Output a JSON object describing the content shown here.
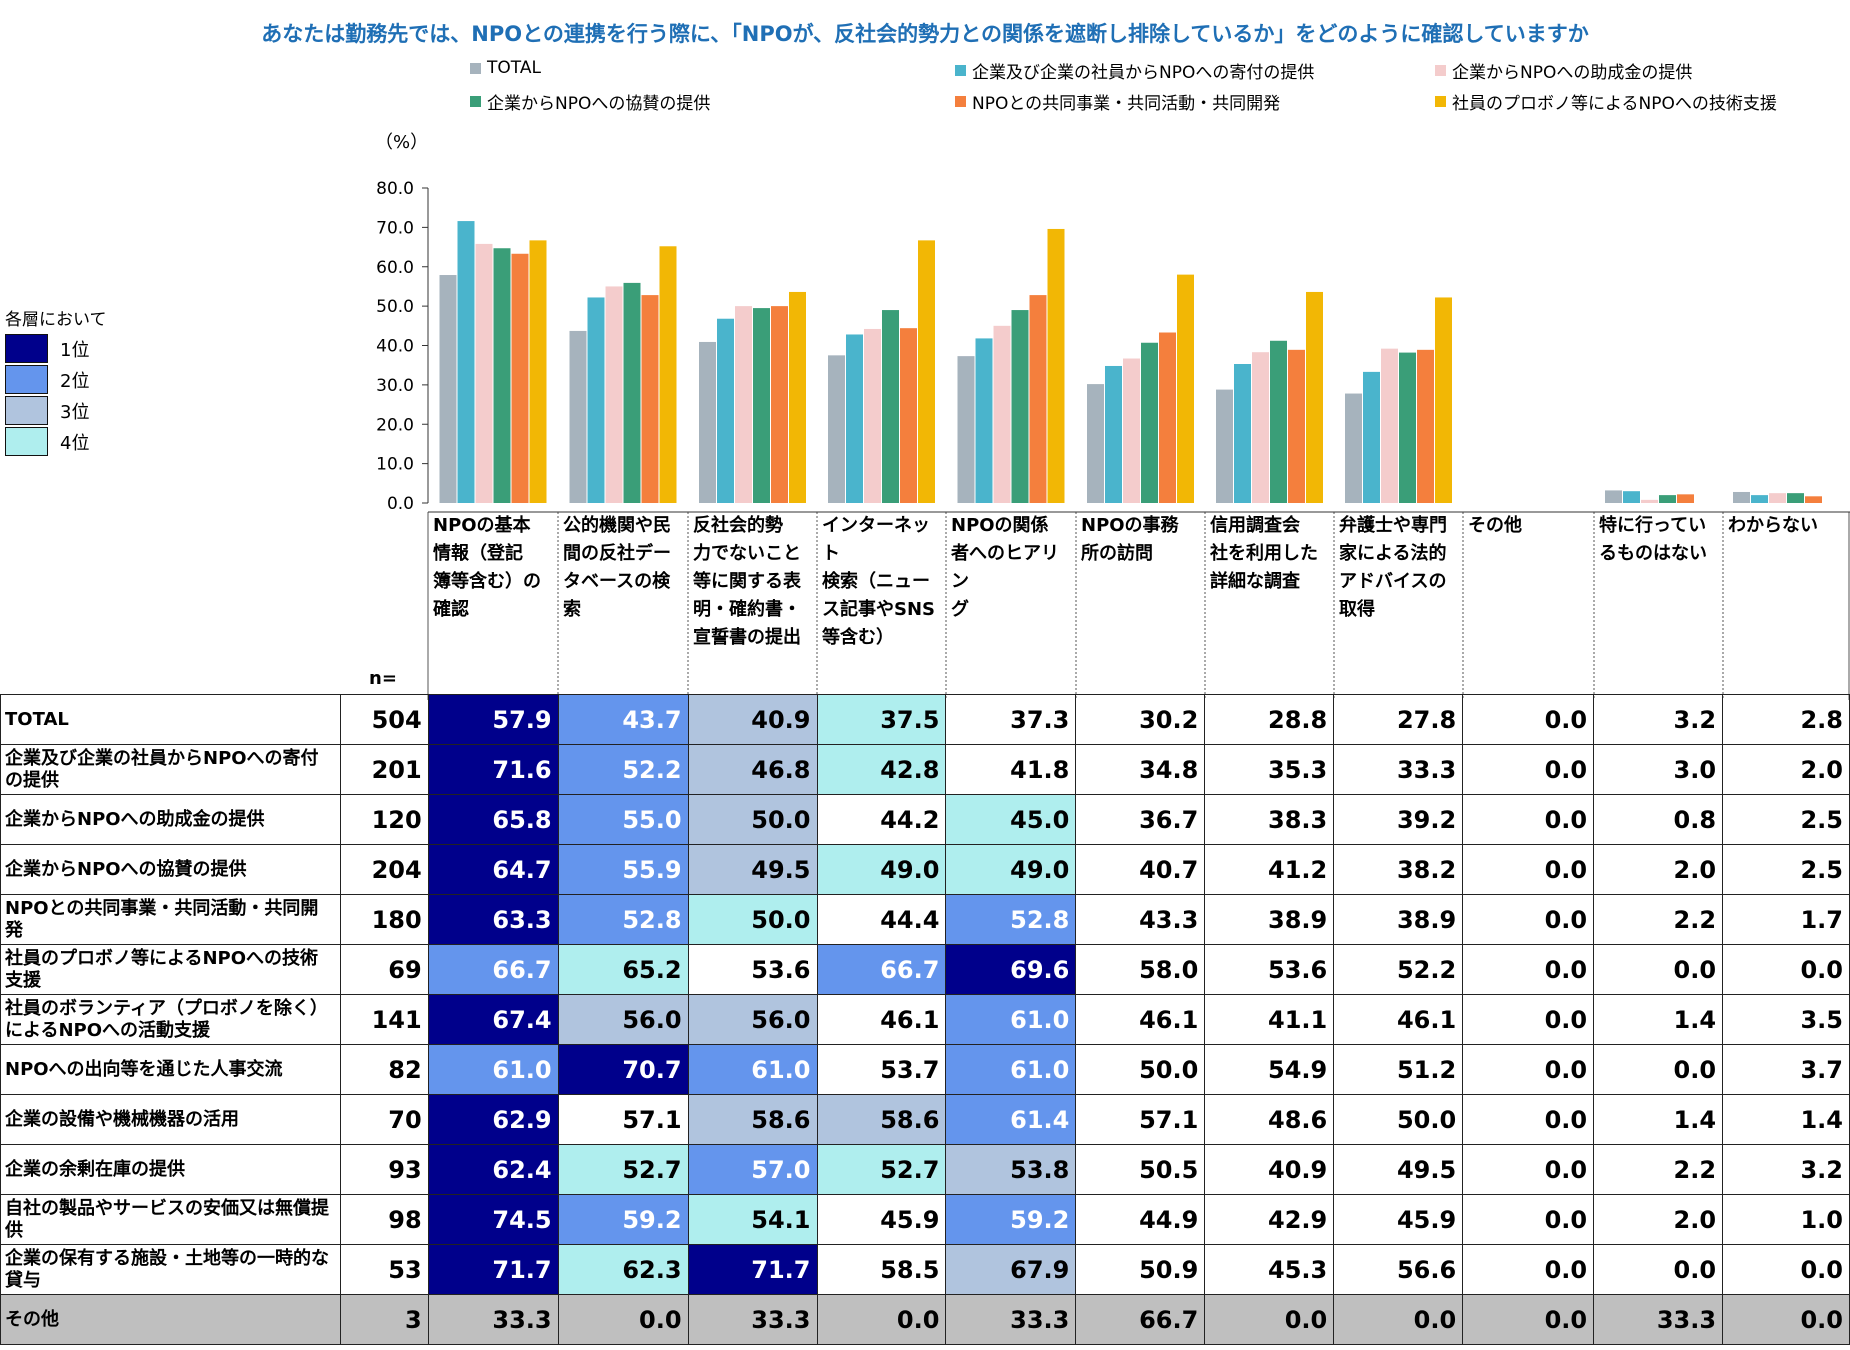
{
  "title": "あなたは勤務先では、NPOとの連携を行う際に、「NPOが、反社会的勢力との関係を遮断し排除しているか」をどのように確認していますか",
  "colors": {
    "title": "#1f6fb5",
    "rank1": "#00008b",
    "rank2": "#6495ed",
    "rank3": "#b0c4de",
    "rank4": "#afeeee",
    "other_row": "#bfbfbf"
  },
  "rank_legend": {
    "title": "各層において",
    "items": [
      "1位",
      "2位",
      "3位",
      "4位"
    ]
  },
  "n_label": "n=",
  "chart_data": {
    "type": "bar",
    "ylabel": "（%）",
    "ylim": [
      0,
      80
    ],
    "yticks": [
      "0.0",
      "10.0",
      "20.0",
      "30.0",
      "40.0",
      "50.0",
      "60.0",
      "70.0",
      "80.0"
    ],
    "categories": [
      "NPOの基本情報（登記簿等含む）の確認",
      "公的機関や民間の反社データベースの検索",
      "反社会的勢力でないこと等に関する表明・確約書・宣誓書の提出",
      "インターネット検索（ニュース記事やSNS等含む）",
      "NPOの関係者へのヒアリング",
      "NPOの事務所の訪問",
      "信用調査会社を利用した詳細な調査",
      "弁護士や専門家による法的アドバイスの取得",
      "その他",
      "特に行っているものはない",
      "わからない"
    ],
    "category_lines": [
      [
        "NPOの基本",
        "情報（登記",
        "簿等含む）の",
        "確認"
      ],
      [
        "公的機関や民",
        "間の反社デー",
        "タベースの検",
        "索"
      ],
      [
        "反社会的勢",
        "力でないこと",
        "等に関する表",
        "明・確約書・",
        "宣誓書の提出"
      ],
      [
        "インターネット",
        "検索（ニュー",
        "ス記事やSNS",
        "等含む）"
      ],
      [
        "NPOの関係",
        "者へのヒアリン",
        "グ"
      ],
      [
        "NPOの事務",
        "所の訪問"
      ],
      [
        "信用調査会",
        "社を利用した",
        "詳細な調査"
      ],
      [
        "弁護士や専門",
        "家による法的",
        "アドバイスの",
        "取得"
      ],
      [
        "その他"
      ],
      [
        "特に行ってい",
        "るものはない"
      ],
      [
        "わからない"
      ]
    ],
    "series": [
      {
        "name": "TOTAL",
        "color": "#a6b3bd",
        "values": [
          57.9,
          43.7,
          40.9,
          37.5,
          37.3,
          30.2,
          28.8,
          27.8,
          0.0,
          3.2,
          2.8
        ]
      },
      {
        "name": "企業及び企業の社員からNPOへの寄付の提供",
        "color": "#4ab4cc",
        "values": [
          71.6,
          52.2,
          46.8,
          42.8,
          41.8,
          34.8,
          35.3,
          33.3,
          0.0,
          3.0,
          2.0
        ]
      },
      {
        "name": "企業からNPOへの助成金の提供",
        "color": "#f4cccc",
        "values": [
          65.8,
          55.0,
          50.0,
          44.2,
          45.0,
          36.7,
          38.3,
          39.2,
          0.0,
          0.8,
          2.5
        ]
      },
      {
        "name": "企業からNPOへの協賛の提供",
        "color": "#3a9e78",
        "values": [
          64.7,
          55.9,
          49.5,
          49.0,
          49.0,
          40.7,
          41.2,
          38.2,
          0.0,
          2.0,
          2.5
        ]
      },
      {
        "name": "NPOとの共同事業・共同活動・共同開発",
        "color": "#f47f3d",
        "values": [
          63.3,
          52.8,
          50.0,
          44.4,
          52.8,
          43.3,
          38.9,
          38.9,
          0.0,
          2.2,
          1.7
        ]
      },
      {
        "name": "社員のプロボノ等によるNPOへの技術支援",
        "color": "#f2b705",
        "values": [
          66.7,
          65.2,
          53.6,
          66.7,
          69.6,
          58.0,
          53.6,
          52.2,
          0.0,
          0.0,
          0.0
        ]
      }
    ]
  },
  "table": {
    "rows": [
      {
        "label": "TOTAL",
        "n": "504",
        "values": [
          "57.9",
          "43.7",
          "40.9",
          "37.5",
          "37.3",
          "30.2",
          "28.8",
          "27.8",
          "0.0",
          "3.2",
          "2.8"
        ],
        "ranks": [
          1,
          2,
          3,
          4,
          0,
          0,
          0,
          0,
          0,
          0,
          0
        ]
      },
      {
        "label": "企業及び企業の社員からNPOへの寄付の提供",
        "n": "201",
        "values": [
          "71.6",
          "52.2",
          "46.8",
          "42.8",
          "41.8",
          "34.8",
          "35.3",
          "33.3",
          "0.0",
          "3.0",
          "2.0"
        ],
        "ranks": [
          1,
          2,
          3,
          4,
          0,
          0,
          0,
          0,
          0,
          0,
          0
        ]
      },
      {
        "label": "企業からNPOへの助成金の提供",
        "n": "120",
        "values": [
          "65.8",
          "55.0",
          "50.0",
          "44.2",
          "45.0",
          "36.7",
          "38.3",
          "39.2",
          "0.0",
          "0.8",
          "2.5"
        ],
        "ranks": [
          1,
          2,
          3,
          0,
          4,
          0,
          0,
          0,
          0,
          0,
          0
        ]
      },
      {
        "label": "企業からNPOへの協賛の提供",
        "n": "204",
        "values": [
          "64.7",
          "55.9",
          "49.5",
          "49.0",
          "49.0",
          "40.7",
          "41.2",
          "38.2",
          "0.0",
          "2.0",
          "2.5"
        ],
        "ranks": [
          1,
          2,
          3,
          4,
          4,
          0,
          0,
          0,
          0,
          0,
          0
        ]
      },
      {
        "label": "NPOとの共同事業・共同活動・共同開発",
        "n": "180",
        "values": [
          "63.3",
          "52.8",
          "50.0",
          "44.4",
          "52.8",
          "43.3",
          "38.9",
          "38.9",
          "0.0",
          "2.2",
          "1.7"
        ],
        "ranks": [
          1,
          2,
          4,
          0,
          2,
          0,
          0,
          0,
          0,
          0,
          0
        ]
      },
      {
        "label": "社員のプロボノ等によるNPOへの技術支援",
        "n": "69",
        "values": [
          "66.7",
          "65.2",
          "53.6",
          "66.7",
          "69.6",
          "58.0",
          "53.6",
          "52.2",
          "0.0",
          "0.0",
          "0.0"
        ],
        "ranks": [
          2,
          4,
          0,
          2,
          1,
          0,
          0,
          0,
          0,
          0,
          0
        ]
      },
      {
        "label": "社員のボランティア（プロボノを除く）によるNPOへの活動支援",
        "n": "141",
        "values": [
          "67.4",
          "56.0",
          "56.0",
          "46.1",
          "61.0",
          "46.1",
          "41.1",
          "46.1",
          "0.0",
          "1.4",
          "3.5"
        ],
        "ranks": [
          1,
          3,
          3,
          0,
          2,
          0,
          0,
          0,
          0,
          0,
          0
        ]
      },
      {
        "label": "NPOへの出向等を通じた人事交流",
        "n": "82",
        "values": [
          "61.0",
          "70.7",
          "61.0",
          "53.7",
          "61.0",
          "50.0",
          "54.9",
          "51.2",
          "0.0",
          "0.0",
          "3.7"
        ],
        "ranks": [
          2,
          1,
          2,
          0,
          2,
          0,
          0,
          0,
          0,
          0,
          0
        ]
      },
      {
        "label": "企業の設備や機械機器の活用",
        "n": "70",
        "values": [
          "62.9",
          "57.1",
          "58.6",
          "58.6",
          "61.4",
          "57.1",
          "48.6",
          "50.0",
          "0.0",
          "1.4",
          "1.4"
        ],
        "ranks": [
          1,
          0,
          3,
          3,
          2,
          0,
          0,
          0,
          0,
          0,
          0
        ]
      },
      {
        "label": "企業の余剰在庫の提供",
        "n": "93",
        "values": [
          "62.4",
          "52.7",
          "57.0",
          "52.7",
          "53.8",
          "50.5",
          "40.9",
          "49.5",
          "0.0",
          "2.2",
          "3.2"
        ],
        "ranks": [
          1,
          4,
          2,
          4,
          3,
          0,
          0,
          0,
          0,
          0,
          0
        ]
      },
      {
        "label": "自社の製品やサービスの安価又は無償提供",
        "n": "98",
        "values": [
          "74.5",
          "59.2",
          "54.1",
          "45.9",
          "59.2",
          "44.9",
          "42.9",
          "45.9",
          "0.0",
          "2.0",
          "1.0"
        ],
        "ranks": [
          1,
          2,
          4,
          0,
          2,
          0,
          0,
          0,
          0,
          0,
          0
        ]
      },
      {
        "label": "企業の保有する施設・土地等の一時的な貸与",
        "n": "53",
        "values": [
          "71.7",
          "62.3",
          "71.7",
          "58.5",
          "67.9",
          "50.9",
          "45.3",
          "56.6",
          "0.0",
          "0.0",
          "0.0"
        ],
        "ranks": [
          1,
          4,
          1,
          0,
          3,
          0,
          0,
          0,
          0,
          0,
          0
        ]
      },
      {
        "label": "その他",
        "n": "3",
        "values": [
          "33.3",
          "0.0",
          "33.3",
          "0.0",
          "33.3",
          "66.7",
          "0.0",
          "0.0",
          "0.0",
          "33.3",
          "0.0"
        ],
        "ranks": [
          0,
          0,
          0,
          0,
          0,
          0,
          0,
          0,
          0,
          0,
          0
        ]
      }
    ]
  }
}
